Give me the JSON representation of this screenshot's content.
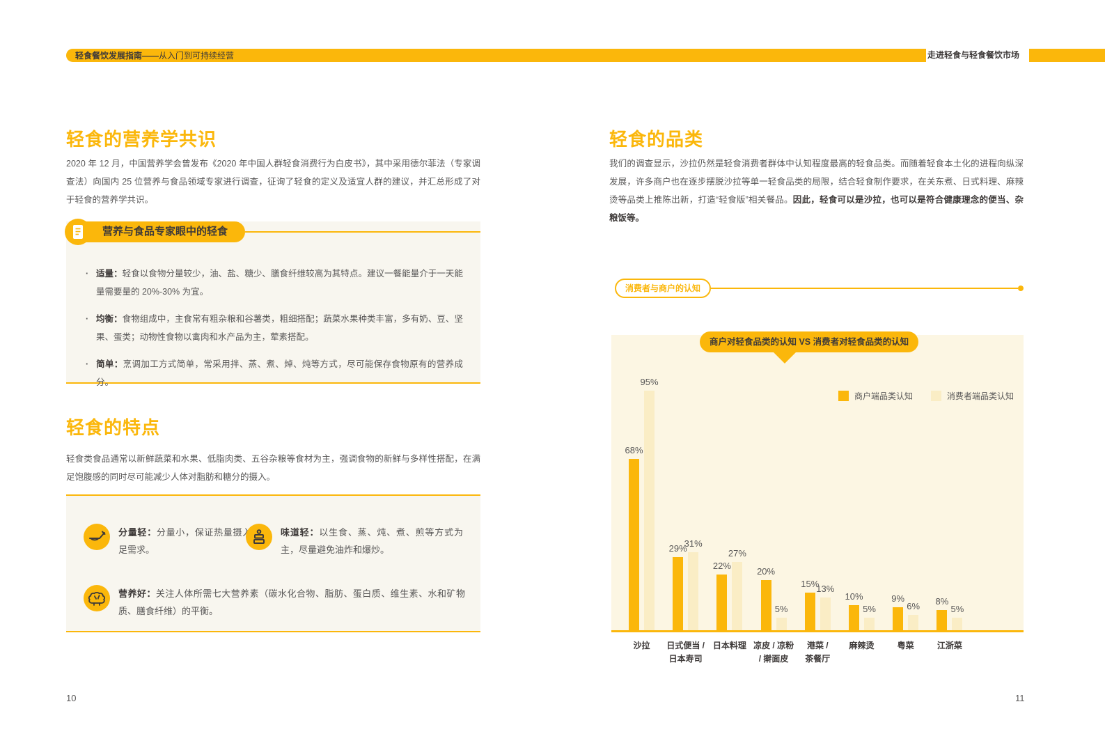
{
  "header": {
    "left_title_bold": "轻食餐饮发展指南——",
    "left_title_rest": "从入门到可持续经营",
    "right_title": "走进轻食与轻食餐饮市场"
  },
  "left": {
    "section1": {
      "title": "轻食的营养学共识",
      "paragraph": "2020 年 12 月，中国营养学会曾发布《2020 年中国人群轻食消费行为白皮书》，其中采用德尔菲法（专家调查法）向国内 25 位营养与食品领域专家进行调查，征询了轻食的定义及适宜人群的建议，并汇总形成了对于轻食的营养学共识。",
      "panel": {
        "ribbon": "营养与食品专家眼中的轻食",
        "bullets": [
          {
            "label": "适量：",
            "text": "轻食以食物分量较少，油、盐、糖少、膳食纤维较高为其特点。建议一餐能量介于一天能量需要量的 20%-30% 为宜。"
          },
          {
            "label": "均衡：",
            "text": "食物组成中，主食常有粗杂粮和谷薯类，粗细搭配；蔬菜水果种类丰富，多有奶、豆、坚果、蛋类；动物性食物以禽肉和水产品为主，荤素搭配。"
          },
          {
            "label": "简单：",
            "text": "烹调加工方式简单，常采用拌、蒸、煮、焯、炖等方式，尽可能保存食物原有的营养成分。"
          }
        ]
      }
    },
    "section2": {
      "title": "轻食的特点",
      "paragraph": "轻食类食品通常以新鲜蔬菜和水果、低脂肉类、五谷杂粮等食材为主，强调食物的新鲜与多样性搭配，在满足饱腹感的同时尽可能减少人体对脂肪和糖分的摄入。",
      "features": [
        {
          "icon": "spoon-icon",
          "label": "分量轻：",
          "text": "分量小，保证热量摄入满足需求。"
        },
        {
          "icon": "steamer-icon",
          "label": "味道轻：",
          "text": "以生食、蒸、炖、煮、煎等方式为主，尽量避免油炸和爆炒。"
        },
        {
          "icon": "nutrition-brain-icon",
          "label": "营养好：",
          "text": "关注人体所需七大营养素（碳水化合物、脂肪、蛋白质、维生素、水和矿物质、膳食纤维）的平衡。"
        }
      ]
    }
  },
  "right": {
    "title": "轻食的品类",
    "paragraph": "我们的调查显示，沙拉仍然是轻食消费者群体中认知程度最高的轻食品类。而随着轻食本土化的进程向纵深发展，许多商户也在逐步摆脱沙拉等单一轻食品类的局限，结合轻食制作要求，在关东煮、日式料理、麻辣烫等品类上推陈出新，打造“轻食版”相关餐品。",
    "paragraph_bold": "因此，轻食可以是沙拉，也可以是符合健康理念的便当、杂粮饭等。",
    "badge_label": "消费者与商户的认知"
  },
  "chart_data": {
    "type": "bar",
    "title": "商户对轻食品类的认知 VS 消费者对轻食品类的认知",
    "categories": [
      [
        "沙拉"
      ],
      [
        "日式便当 /",
        "日本寿司"
      ],
      [
        "日本料理"
      ],
      [
        "凉皮 / 凉粉",
        "/ 擀面皮"
      ],
      [
        "港菜 /",
        "茶餐厅"
      ],
      [
        "麻辣烫"
      ],
      [
        "粤菜"
      ],
      [
        "江浙菜"
      ]
    ],
    "series": [
      {
        "name": "商户端品类认知",
        "color": "#FBB70B",
        "values": [
          68,
          29,
          22,
          20,
          15,
          10,
          9,
          8
        ]
      },
      {
        "name": "消费者端品类认知",
        "color": "#FAEDC5",
        "values": [
          95,
          31,
          27,
          5,
          13,
          5,
          6,
          5
        ]
      }
    ],
    "value_suffix": "%",
    "ylim": [
      0,
      100
    ],
    "grid": false,
    "legend_position": "top-right"
  },
  "footer": {
    "left_page": "10",
    "right_page": "11"
  },
  "colors": {
    "accent_yellow": "#FBB70B",
    "light_series": "#FAEDC5",
    "chart_background": "#FCF6E3",
    "panel_background": "#F8F6EF",
    "text_dark": "#3E3A39",
    "text_gray": "#585757"
  }
}
